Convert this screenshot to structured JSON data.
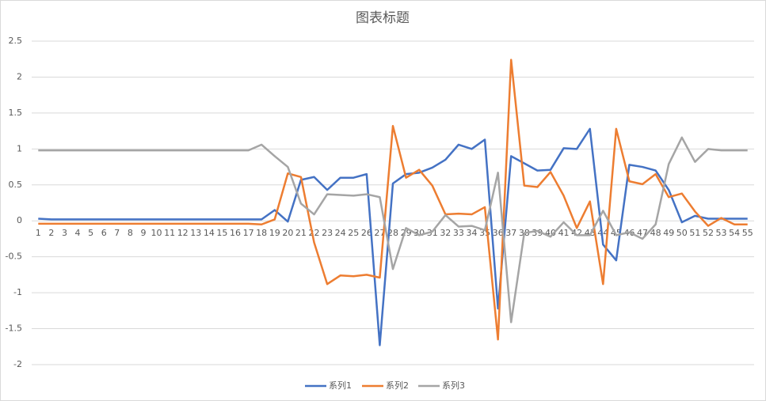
{
  "chart_data": {
    "type": "line",
    "title": "图表标题",
    "categories": [
      "1",
      "2",
      "3",
      "4",
      "5",
      "6",
      "7",
      "8",
      "9",
      "10",
      "11",
      "12",
      "13",
      "14",
      "15",
      "16",
      "17",
      "18",
      "19",
      "20",
      "21",
      "22",
      "23",
      "24",
      "25",
      "26",
      "27",
      "28",
      "29",
      "30",
      "31",
      "32",
      "33",
      "34",
      "35",
      "36",
      "37",
      "38",
      "39",
      "40",
      "41",
      "42",
      "43",
      "44",
      "45",
      "46",
      "47",
      "48",
      "49",
      "50",
      "51",
      "52",
      "53",
      "54",
      "55"
    ],
    "series": [
      {
        "name": "系列1",
        "color": "#4472c4",
        "values": [
          0.03,
          0.02,
          0.02,
          0.02,
          0.02,
          0.02,
          0.02,
          0.02,
          0.02,
          0.02,
          0.02,
          0.02,
          0.02,
          0.02,
          0.02,
          0.02,
          0.02,
          0.02,
          0.15,
          -0.01,
          0.57,
          0.61,
          0.43,
          0.6,
          0.6,
          0.65,
          -1.73,
          0.52,
          0.65,
          0.67,
          0.74,
          0.85,
          1.06,
          1.0,
          1.13,
          -1.22,
          0.9,
          0.8,
          0.7,
          0.71,
          1.01,
          1.0,
          1.28,
          -0.33,
          -0.55,
          0.78,
          0.75,
          0.7,
          0.43,
          -0.02,
          0.07,
          0.03,
          0.03,
          0.03,
          0.03
        ]
      },
      {
        "name": "系列2",
        "color": "#ed7d31",
        "values": [
          -0.04,
          -0.04,
          -0.04,
          -0.04,
          -0.04,
          -0.04,
          -0.04,
          -0.04,
          -0.04,
          -0.04,
          -0.04,
          -0.04,
          -0.04,
          -0.04,
          -0.04,
          -0.04,
          -0.04,
          -0.05,
          0.02,
          0.66,
          0.61,
          -0.3,
          -0.88,
          -0.76,
          -0.77,
          -0.75,
          -0.79,
          1.32,
          0.6,
          0.71,
          0.49,
          0.09,
          0.1,
          0.09,
          0.19,
          -1.65,
          2.24,
          0.49,
          0.47,
          0.68,
          0.35,
          -0.1,
          0.27,
          -0.88,
          1.28,
          0.55,
          0.51,
          0.65,
          0.33,
          0.38,
          0.13,
          -0.07,
          0.04,
          -0.05,
          -0.05
        ]
      },
      {
        "name": "系列3",
        "color": "#a5a5a5",
        "values": [
          0.98,
          0.98,
          0.98,
          0.98,
          0.98,
          0.98,
          0.98,
          0.98,
          0.98,
          0.98,
          0.98,
          0.98,
          0.98,
          0.98,
          0.98,
          0.98,
          0.98,
          1.06,
          0.9,
          0.75,
          0.24,
          0.09,
          0.37,
          0.36,
          0.35,
          0.37,
          0.33,
          -0.67,
          -0.1,
          -0.2,
          -0.15,
          0.08,
          -0.08,
          -0.07,
          -0.13,
          0.67,
          -1.41,
          -0.17,
          -0.14,
          -0.22,
          -0.02,
          -0.2,
          -0.2,
          0.14,
          -0.2,
          -0.16,
          -0.25,
          -0.05,
          0.79,
          1.16,
          0.82,
          1.0,
          0.98,
          0.98,
          0.98
        ]
      }
    ],
    "ylim": [
      -2,
      2.5
    ],
    "yticks": [
      -2,
      -1.5,
      -1,
      -0.5,
      0,
      0.5,
      1,
      1.5,
      2,
      2.5
    ],
    "grid": true,
    "legend": "bottom"
  }
}
